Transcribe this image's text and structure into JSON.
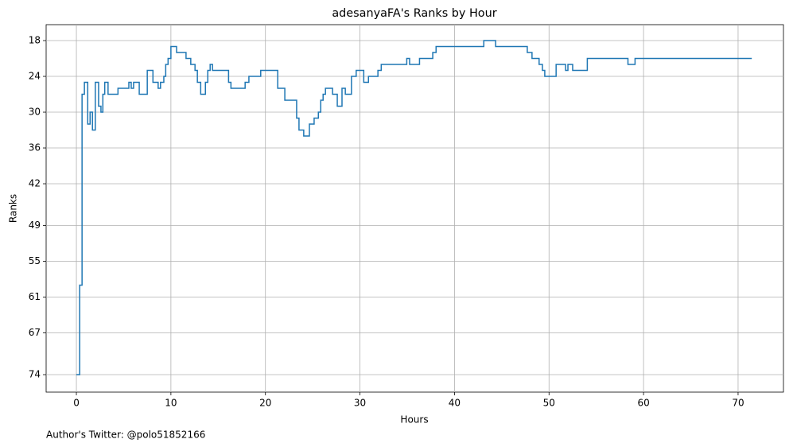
{
  "chart_data": {
    "type": "step",
    "title": "adesanyaFA's Ranks by Hour",
    "x_label": "Hours",
    "y_label": "Ranks",
    "footer": "Author's Twitter: @polo51852166",
    "color": "#1f77b4",
    "grid": true,
    "y_inverted": true,
    "xlim": [
      -3.2,
      74.8
    ],
    "ylim": [
      76.93,
      15.33
    ],
    "xticks": [
      0,
      10,
      20,
      30,
      40,
      50,
      60,
      70
    ],
    "yticks": [
      18,
      24,
      30,
      36,
      42,
      49,
      55,
      61,
      67,
      74
    ],
    "x": [
      0.0,
      0.35,
      0.6,
      0.85,
      1.2,
      1.45,
      1.7,
      2.0,
      2.35,
      2.6,
      2.8,
      3.0,
      3.35,
      4.4,
      5.55,
      5.8,
      6.05,
      6.65,
      7.5,
      8.1,
      8.65,
      8.9,
      9.25,
      9.45,
      9.7,
      10.0,
      10.6,
      11.6,
      12.1,
      12.55,
      12.8,
      13.15,
      13.65,
      13.9,
      14.15,
      14.4,
      16.1,
      16.35,
      17.85,
      18.25,
      19.5,
      21.3,
      22.05,
      23.3,
      23.55,
      24.05,
      24.65,
      25.15,
      25.6,
      25.85,
      26.1,
      26.35,
      27.1,
      27.6,
      28.1,
      28.45,
      29.1,
      29.6,
      30.4,
      30.9,
      31.9,
      32.25,
      34.95,
      35.25,
      36.3,
      37.7,
      38.05,
      43.1,
      44.35,
      47.7,
      48.2,
      48.95,
      49.3,
      49.55,
      50.75,
      51.75,
      52.0,
      52.5,
      54.05,
      58.35,
      59.1,
      71.45
    ],
    "values": [
      74,
      59,
      27,
      25,
      32,
      30,
      33,
      25,
      29,
      30,
      27,
      25,
      27,
      26,
      25,
      26,
      25,
      27,
      23,
      25,
      26,
      25,
      24,
      22,
      21,
      19,
      20,
      21,
      22,
      23,
      25,
      27,
      25,
      23,
      22,
      23,
      25,
      26,
      25,
      24,
      23,
      26,
      28,
      31,
      33,
      34,
      32,
      31,
      30,
      28,
      27,
      26,
      27,
      29,
      26,
      27,
      24,
      23,
      25,
      24,
      23,
      22,
      21,
      22,
      21,
      20,
      19,
      18,
      19,
      20,
      21,
      22,
      23,
      24,
      22,
      23,
      22,
      23,
      21,
      22,
      21,
      21
    ]
  }
}
